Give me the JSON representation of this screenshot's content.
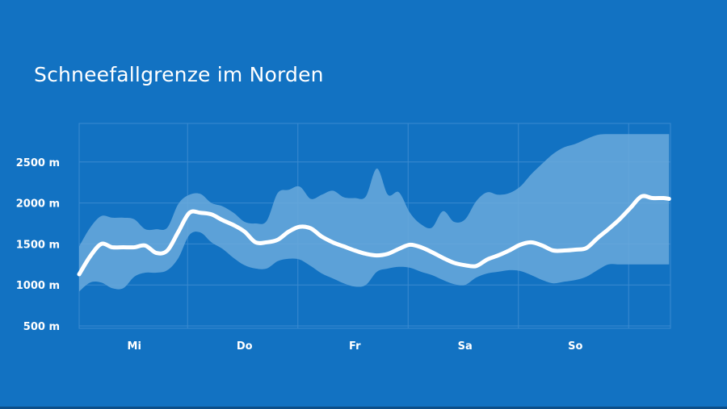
{
  "chart_data": {
    "type": "area",
    "title": "Schneefallgrenze im Norden",
    "xlabel": "",
    "ylabel": "",
    "y_unit": "m",
    "ylim": [
      500,
      2500
    ],
    "xlim": [
      0,
      5.35
    ],
    "y_ticks": [
      500,
      1000,
      1500,
      2000,
      2500
    ],
    "y_tick_labels": [
      "500 m",
      "1000 m",
      "1500 m",
      "2000 m",
      "2500 m"
    ],
    "x_ticks": [
      0.5,
      1.5,
      2.5,
      3.5,
      4.5
    ],
    "x_tick_labels": [
      "Mi",
      "Do",
      "Fr",
      "Sa",
      "So"
    ],
    "grid": true,
    "colors": {
      "background": "#1272c2",
      "band": "#6aa9dc",
      "line": "#ffffff",
      "grid": "#3a8ad0"
    },
    "series": [
      {
        "kind": "line",
        "x": [
          0.0,
          0.1,
          0.2,
          0.3,
          0.4,
          0.5,
          0.6,
          0.7,
          0.8,
          0.9,
          1.0,
          1.1,
          1.2,
          1.3,
          1.4,
          1.5,
          1.6,
          1.7,
          1.8,
          1.9,
          2.0,
          2.1,
          2.2,
          2.3,
          2.4,
          2.5,
          2.6,
          2.7,
          2.8,
          2.9,
          3.0,
          3.1,
          3.2,
          3.3,
          3.4,
          3.5,
          3.6,
          3.7,
          3.8,
          3.9,
          4.0,
          4.1,
          4.2,
          4.3,
          4.4,
          4.5,
          4.6,
          4.7,
          4.8,
          4.9,
          5.0,
          5.1,
          5.2,
          5.3,
          5.35
        ],
        "values": [
          1130,
          1350,
          1500,
          1460,
          1460,
          1460,
          1480,
          1390,
          1420,
          1650,
          1880,
          1880,
          1860,
          1790,
          1730,
          1650,
          1520,
          1520,
          1550,
          1650,
          1710,
          1690,
          1590,
          1520,
          1470,
          1420,
          1380,
          1360,
          1380,
          1440,
          1490,
          1460,
          1400,
          1330,
          1270,
          1240,
          1230,
          1310,
          1360,
          1420,
          1490,
          1520,
          1480,
          1420,
          1420,
          1430,
          1450,
          1570,
          1680,
          1800,
          1940,
          2080,
          2060,
          2060,
          2050
        ]
      },
      {
        "kind": "band",
        "x": [
          0.0,
          0.1,
          0.2,
          0.3,
          0.4,
          0.5,
          0.6,
          0.7,
          0.8,
          0.9,
          1.0,
          1.1,
          1.2,
          1.3,
          1.4,
          1.5,
          1.6,
          1.7,
          1.8,
          1.9,
          2.0,
          2.1,
          2.2,
          2.3,
          2.4,
          2.5,
          2.6,
          2.7,
          2.8,
          2.9,
          3.0,
          3.1,
          3.2,
          3.3,
          3.4,
          3.5,
          3.6,
          3.7,
          3.8,
          3.9,
          4.0,
          4.1,
          4.2,
          4.3,
          4.4,
          4.5,
          4.6,
          4.7,
          4.8,
          4.9,
          5.0,
          5.1,
          5.2,
          5.3,
          5.35
        ],
        "upper": [
          1470,
          1700,
          1840,
          1820,
          1820,
          1800,
          1680,
          1680,
          1700,
          1990,
          2100,
          2110,
          2000,
          1960,
          1880,
          1770,
          1750,
          1780,
          2120,
          2160,
          2200,
          2050,
          2100,
          2150,
          2070,
          2060,
          2080,
          2420,
          2100,
          2130,
          1880,
          1740,
          1700,
          1900,
          1770,
          1800,
          2020,
          2130,
          2100,
          2120,
          2200,
          2350,
          2480,
          2600,
          2680,
          2720,
          2780,
          2830,
          2840,
          2840,
          2840,
          2840,
          2840,
          2840,
          2840
        ],
        "lower": [
          920,
          1030,
          1030,
          960,
          960,
          1100,
          1150,
          1150,
          1180,
          1330,
          1610,
          1640,
          1520,
          1440,
          1330,
          1240,
          1200,
          1200,
          1290,
          1320,
          1310,
          1230,
          1140,
          1080,
          1020,
          980,
          1000,
          1160,
          1200,
          1220,
          1210,
          1160,
          1120,
          1060,
          1010,
          1000,
          1090,
          1140,
          1160,
          1180,
          1170,
          1120,
          1060,
          1020,
          1040,
          1060,
          1100,
          1180,
          1250,
          1250,
          1250,
          1250,
          1250,
          1250,
          1250
        ]
      }
    ]
  }
}
